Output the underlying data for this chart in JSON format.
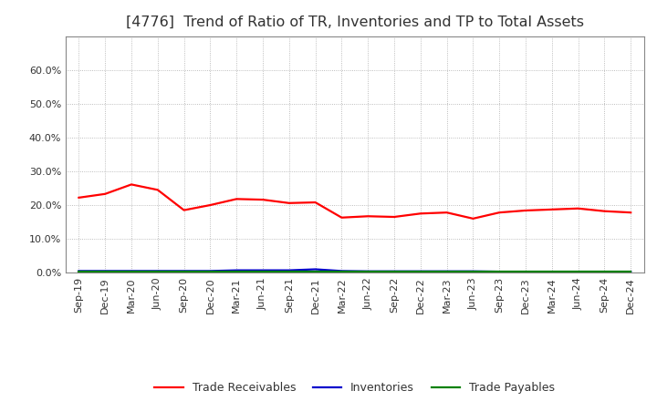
{
  "title": "[4776]  Trend of Ratio of TR, Inventories and TP to Total Assets",
  "x_labels": [
    "Sep-19",
    "Dec-19",
    "Mar-20",
    "Jun-20",
    "Sep-20",
    "Dec-20",
    "Mar-21",
    "Jun-21",
    "Sep-21",
    "Dec-21",
    "Mar-22",
    "Jun-22",
    "Sep-22",
    "Dec-22",
    "Mar-23",
    "Jun-23",
    "Sep-23",
    "Dec-23",
    "Mar-24",
    "Jun-24",
    "Sep-24",
    "Dec-24"
  ],
  "trade_receivables": [
    0.222,
    0.233,
    0.261,
    0.245,
    0.185,
    0.2,
    0.218,
    0.216,
    0.206,
    0.208,
    0.163,
    0.167,
    0.165,
    0.175,
    0.178,
    0.16,
    0.178,
    0.184,
    0.187,
    0.19,
    0.182,
    0.178
  ],
  "inventories": [
    0.005,
    0.005,
    0.005,
    0.005,
    0.005,
    0.005,
    0.007,
    0.007,
    0.007,
    0.01,
    0.005,
    0.004,
    0.004,
    0.004,
    0.004,
    0.004,
    0.003,
    0.003,
    0.003,
    0.003,
    0.003,
    0.003
  ],
  "trade_payables": [
    0.003,
    0.003,
    0.003,
    0.003,
    0.003,
    0.003,
    0.003,
    0.003,
    0.003,
    0.003,
    0.003,
    0.003,
    0.003,
    0.003,
    0.003,
    0.003,
    0.003,
    0.003,
    0.003,
    0.003,
    0.003,
    0.003
  ],
  "tr_color": "#FF0000",
  "inv_color": "#0000CC",
  "tp_color": "#008000",
  "ylim": [
    0.0,
    0.7
  ],
  "yticks": [
    0.0,
    0.1,
    0.2,
    0.3,
    0.4,
    0.5,
    0.6
  ],
  "background_color": "#FFFFFF",
  "plot_bg_color": "#FFFFFF",
  "grid_color": "#AAAAAA",
  "title_color": "#333333",
  "legend_labels": [
    "Trade Receivables",
    "Inventories",
    "Trade Payables"
  ],
  "title_fontsize": 11.5,
  "tick_fontsize": 8,
  "legend_fontsize": 9
}
